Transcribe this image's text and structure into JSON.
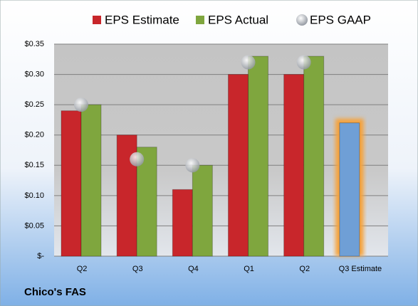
{
  "chart_data": {
    "type": "bar",
    "title": "Chico's FAS",
    "categories": [
      "Q2",
      "Q3",
      "Q4",
      "Q1",
      "Q2",
      "Q3 Estimate"
    ],
    "series": [
      {
        "name": "EPS Estimate",
        "color": "#c8262b",
        "colors": [
          "#c8262b",
          "#c8262b",
          "#c8262b",
          "#c8262b",
          "#c8262b",
          "#6f9fd6"
        ],
        "values": [
          0.24,
          0.2,
          0.11,
          0.3,
          0.3,
          0.22
        ]
      },
      {
        "name": "EPS Actual",
        "color": "#7fa63e",
        "values": [
          0.25,
          0.18,
          0.15,
          0.33,
          0.33,
          null
        ]
      },
      {
        "name": "EPS GAAP",
        "color": "#b4b8bf",
        "values": [
          0.25,
          0.16,
          0.15,
          0.32,
          0.32,
          null
        ]
      }
    ],
    "ylim": [
      0,
      0.35
    ],
    "yticks": [
      {
        "value": 0,
        "label": "$-"
      },
      {
        "value": 0.05,
        "label": "$0.05"
      },
      {
        "value": 0.1,
        "label": "$0.10"
      },
      {
        "value": 0.15,
        "label": "$0.15"
      },
      {
        "value": 0.2,
        "label": "$0.20"
      },
      {
        "value": 0.25,
        "label": "$0.25"
      },
      {
        "value": 0.3,
        "label": "$0.30"
      },
      {
        "value": 0.35,
        "label": "$0.35"
      }
    ],
    "grid": true,
    "glow_color": "#f5a33c"
  }
}
